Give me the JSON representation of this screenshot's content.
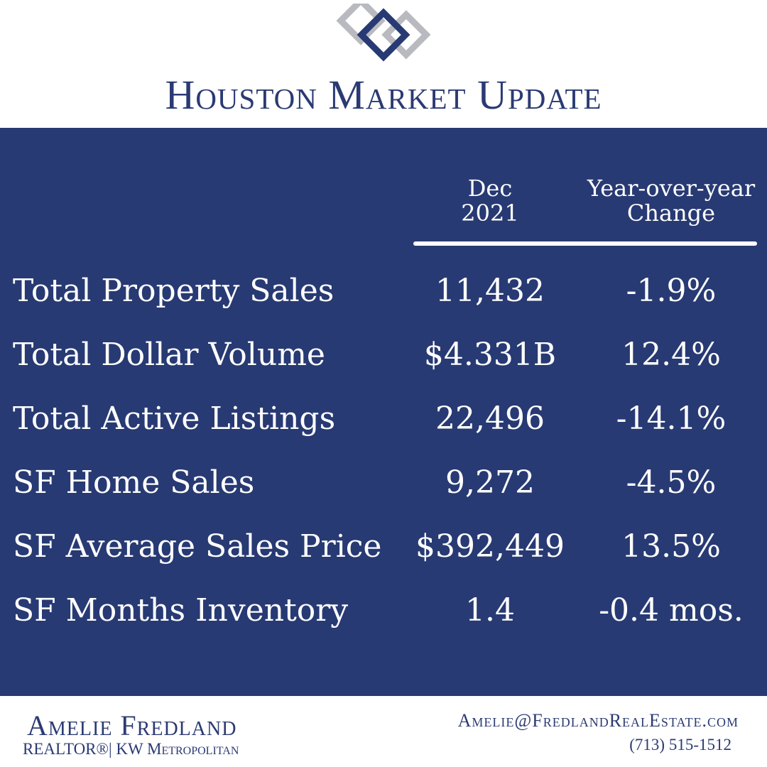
{
  "header": {
    "title": "Houston Market Update"
  },
  "table": {
    "columns": [
      [
        "Dec",
        "2021"
      ],
      [
        "Year-over-year",
        "Change"
      ]
    ],
    "rows": [
      [
        "Total Property Sales",
        "11,432",
        "-1.9%"
      ],
      [
        "Total Dollar Volume",
        "$4.331B",
        "12.4%"
      ],
      [
        "Total Active Listings",
        "22,496",
        "-14.1%"
      ],
      [
        "SF Home Sales",
        "9,272",
        "-4.5%"
      ],
      [
        "SF Average Sales Price",
        "$392,449",
        "13.5%"
      ],
      [
        "SF Months Inventory",
        "1.4",
        "-0.4 mos."
      ]
    ]
  },
  "footer": {
    "name": "Amelie Fredland",
    "affiliation": "REALTOR®| KW Metropolitan",
    "email": "Amelie@FredlandRealEstate.com",
    "phone": "(713) 515-1512"
  }
}
